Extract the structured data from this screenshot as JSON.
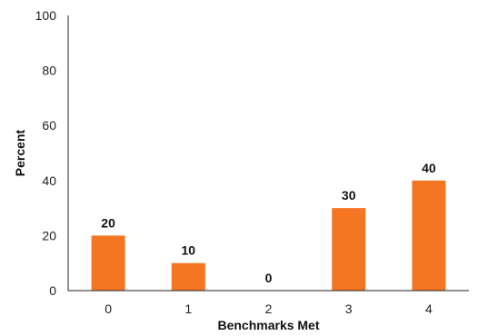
{
  "chart_data": {
    "type": "bar",
    "categories": [
      "0",
      "1",
      "2",
      "3",
      "4"
    ],
    "values": [
      20,
      10,
      0,
      30,
      40
    ],
    "data_labels": [
      "20",
      "10",
      "0",
      "30",
      "40"
    ],
    "title": "",
    "xlabel": "Benchmarks Met",
    "ylabel": "Percent",
    "ylim": [
      0,
      100
    ],
    "yticks": [
      0,
      20,
      40,
      60,
      80,
      100
    ],
    "grid": false,
    "legend": "none",
    "bar_color": "#F47622"
  }
}
